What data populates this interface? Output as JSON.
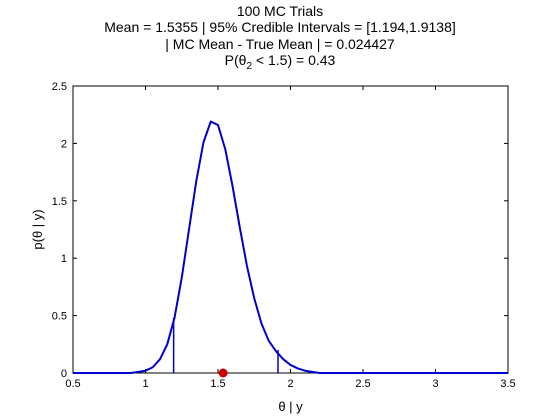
{
  "chart_data": {
    "type": "line",
    "title_lines": [
      "100 MC Trials",
      "Mean = 1.5355 | 95% Credible Intervals = [1.194,1.9138]",
      "| MC Mean - True Mean | = 0.024427"
    ],
    "prob_line": {
      "prefix": "P(θ",
      "subscript": "2",
      "suffix": " < 1.5) = 0.43"
    },
    "xlabel": "θ | y",
    "ylabel": "p(θ | y)",
    "xlim": [
      0.5,
      3.5
    ],
    "ylim": [
      0,
      2.5
    ],
    "xticks": [
      0.5,
      1,
      1.5,
      2,
      2.5,
      3,
      3.5
    ],
    "xtick_labels": [
      "0.5",
      "1",
      "1.5",
      "2",
      "2.5",
      "3",
      "3.5"
    ],
    "yticks": [
      0,
      0.5,
      1,
      1.5,
      2,
      2.5
    ],
    "ytick_labels": [
      "0",
      "0.5",
      "1",
      "1.5",
      "2",
      "2.5"
    ],
    "grid": false,
    "series": [
      {
        "color": "#0000cc",
        "x": [
          0.5,
          0.9,
          1.0,
          1.05,
          1.1,
          1.15,
          1.2,
          1.25,
          1.3,
          1.35,
          1.4,
          1.45,
          1.5,
          1.55,
          1.6,
          1.65,
          1.7,
          1.75,
          1.8,
          1.85,
          1.9,
          1.95,
          2.0,
          2.05,
          2.1,
          2.15,
          2.2,
          2.3,
          3.5
        ],
        "y": [
          0.0,
          0.0,
          0.02,
          0.05,
          0.12,
          0.25,
          0.48,
          0.83,
          1.25,
          1.67,
          2.01,
          2.19,
          2.16,
          1.95,
          1.63,
          1.27,
          0.93,
          0.65,
          0.43,
          0.28,
          0.19,
          0.12,
          0.07,
          0.04,
          0.02,
          0.01,
          0.0,
          0.0,
          0.0
        ]
      }
    ],
    "credible_interval": {
      "lower": 1.194,
      "upper": 1.9138,
      "lower_density": 0.48,
      "upper_density": 0.2,
      "color": "#0000cc"
    },
    "markers": [
      {
        "x": 1.5355,
        "y": 0,
        "color": "#cc0000"
      }
    ]
  }
}
